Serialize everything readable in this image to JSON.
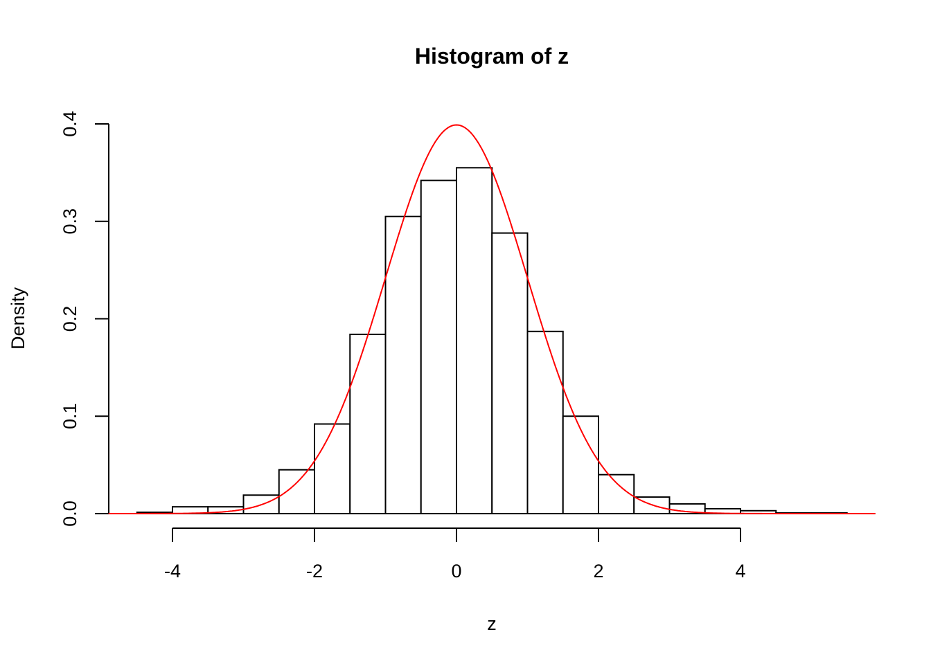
{
  "chart_data": {
    "type": "bar",
    "title": "Histogram of z",
    "xlabel": "z",
    "ylabel": "Density",
    "bin_edges": [
      -4.5,
      -4,
      -3.5,
      -3,
      -2.5,
      -2,
      -1.5,
      -1,
      -0.5,
      0,
      0.5,
      1,
      1.5,
      2,
      2.5,
      3,
      3.5,
      4,
      4.5,
      5,
      5.5
    ],
    "values": [
      0.0014,
      0.007,
      0.007,
      0.019,
      0.045,
      0.092,
      0.184,
      0.305,
      0.342,
      0.355,
      0.288,
      0.187,
      0.1,
      0.04,
      0.017,
      0.01,
      0.005,
      0.003,
      0.0007,
      0.0007
    ],
    "overlay": {
      "type": "line",
      "function": "normal density",
      "mean": 0,
      "sd": 1,
      "color": "#ff0000",
      "x_range": [
        -4.9,
        5.9
      ]
    },
    "xticks": [
      "-4",
      "-2",
      "0",
      "2",
      "4"
    ],
    "xtick_values": [
      -4,
      -2,
      0,
      2,
      4
    ],
    "yticks": [
      "0.0",
      "0.1",
      "0.2",
      "0.3",
      "0.4"
    ],
    "ytick_values": [
      0,
      0.1,
      0.2,
      0.3,
      0.4
    ],
    "ylim": [
      0,
      0.4
    ],
    "grid": false,
    "bar_fill": "#ffffff",
    "bar_stroke": "#000000"
  }
}
